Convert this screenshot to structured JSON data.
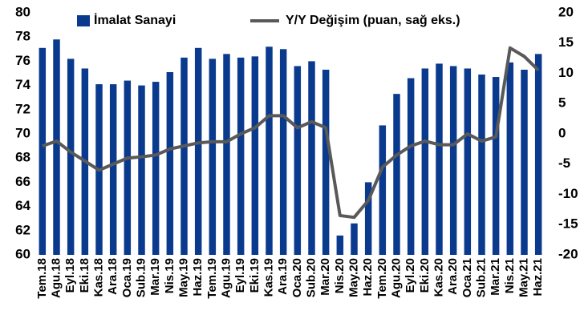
{
  "chart_data": {
    "type": "bar_line",
    "categories": [
      "Tem.18",
      "Agu.18",
      "Eyl.18",
      "Eki.18",
      "Kas.18",
      "Ara.18",
      "Oca.19",
      "Sub.19",
      "Mar.19",
      "Nis.19",
      "May.19",
      "Haz.19",
      "Tem.19",
      "Agu.19",
      "Eyl.19",
      "Eki.19",
      "Kas.19",
      "Ara.19",
      "Oca.20",
      "Sub.20",
      "Mar.20",
      "Nis.20",
      "May.20",
      "Haz.20",
      "Tem.20",
      "Agu.20",
      "Eyl.20",
      "Eki.20",
      "Kas.20",
      "Ara.20",
      "Oca.21",
      "Sub.21",
      "Mar.21",
      "Nis.21",
      "May.21",
      "Haz.21"
    ],
    "series": [
      {
        "name": "İmalat Sanayi",
        "type": "bar",
        "color": "#0a3a8e",
        "values": [
          77.1,
          77.8,
          76.2,
          75.4,
          74.1,
          74.1,
          74.4,
          74.0,
          74.3,
          75.1,
          76.3,
          77.1,
          76.2,
          76.6,
          76.3,
          76.4,
          77.2,
          77.0,
          75.6,
          76.0,
          75.3,
          61.6,
          62.6,
          66.0,
          70.7,
          73.3,
          74.6,
          75.4,
          75.8,
          75.6,
          75.4,
          74.9,
          74.7,
          75.9,
          75.3,
          76.6
        ]
      },
      {
        "name": "Y/Y Değişim (puan, sağ eks.)",
        "type": "line",
        "axis": "y2",
        "color": "#595959",
        "values": [
          -2,
          -1.2,
          -3,
          -4.5,
          -6,
          -5,
          -4,
          -3.8,
          -3.5,
          -2.5,
          -2,
          -1.5,
          -1.3,
          -1.3,
          0,
          1,
          3,
          3,
          1,
          2,
          1,
          -13.5,
          -13.8,
          -11,
          -5.5,
          -3.5,
          -2,
          -1.2,
          -1.8,
          -1.8,
          0,
          -1.2,
          -0.5,
          14.2,
          12.8,
          10.5
        ]
      }
    ],
    "ylim": [
      60,
      80
    ],
    "yticks": [
      60,
      62,
      64,
      66,
      68,
      70,
      72,
      74,
      76,
      78,
      80
    ],
    "y2lim": [
      -20,
      20
    ],
    "y2ticks": [
      -20,
      -15,
      -10,
      -5,
      0,
      5,
      10,
      15,
      20
    ],
    "legend": "top"
  }
}
